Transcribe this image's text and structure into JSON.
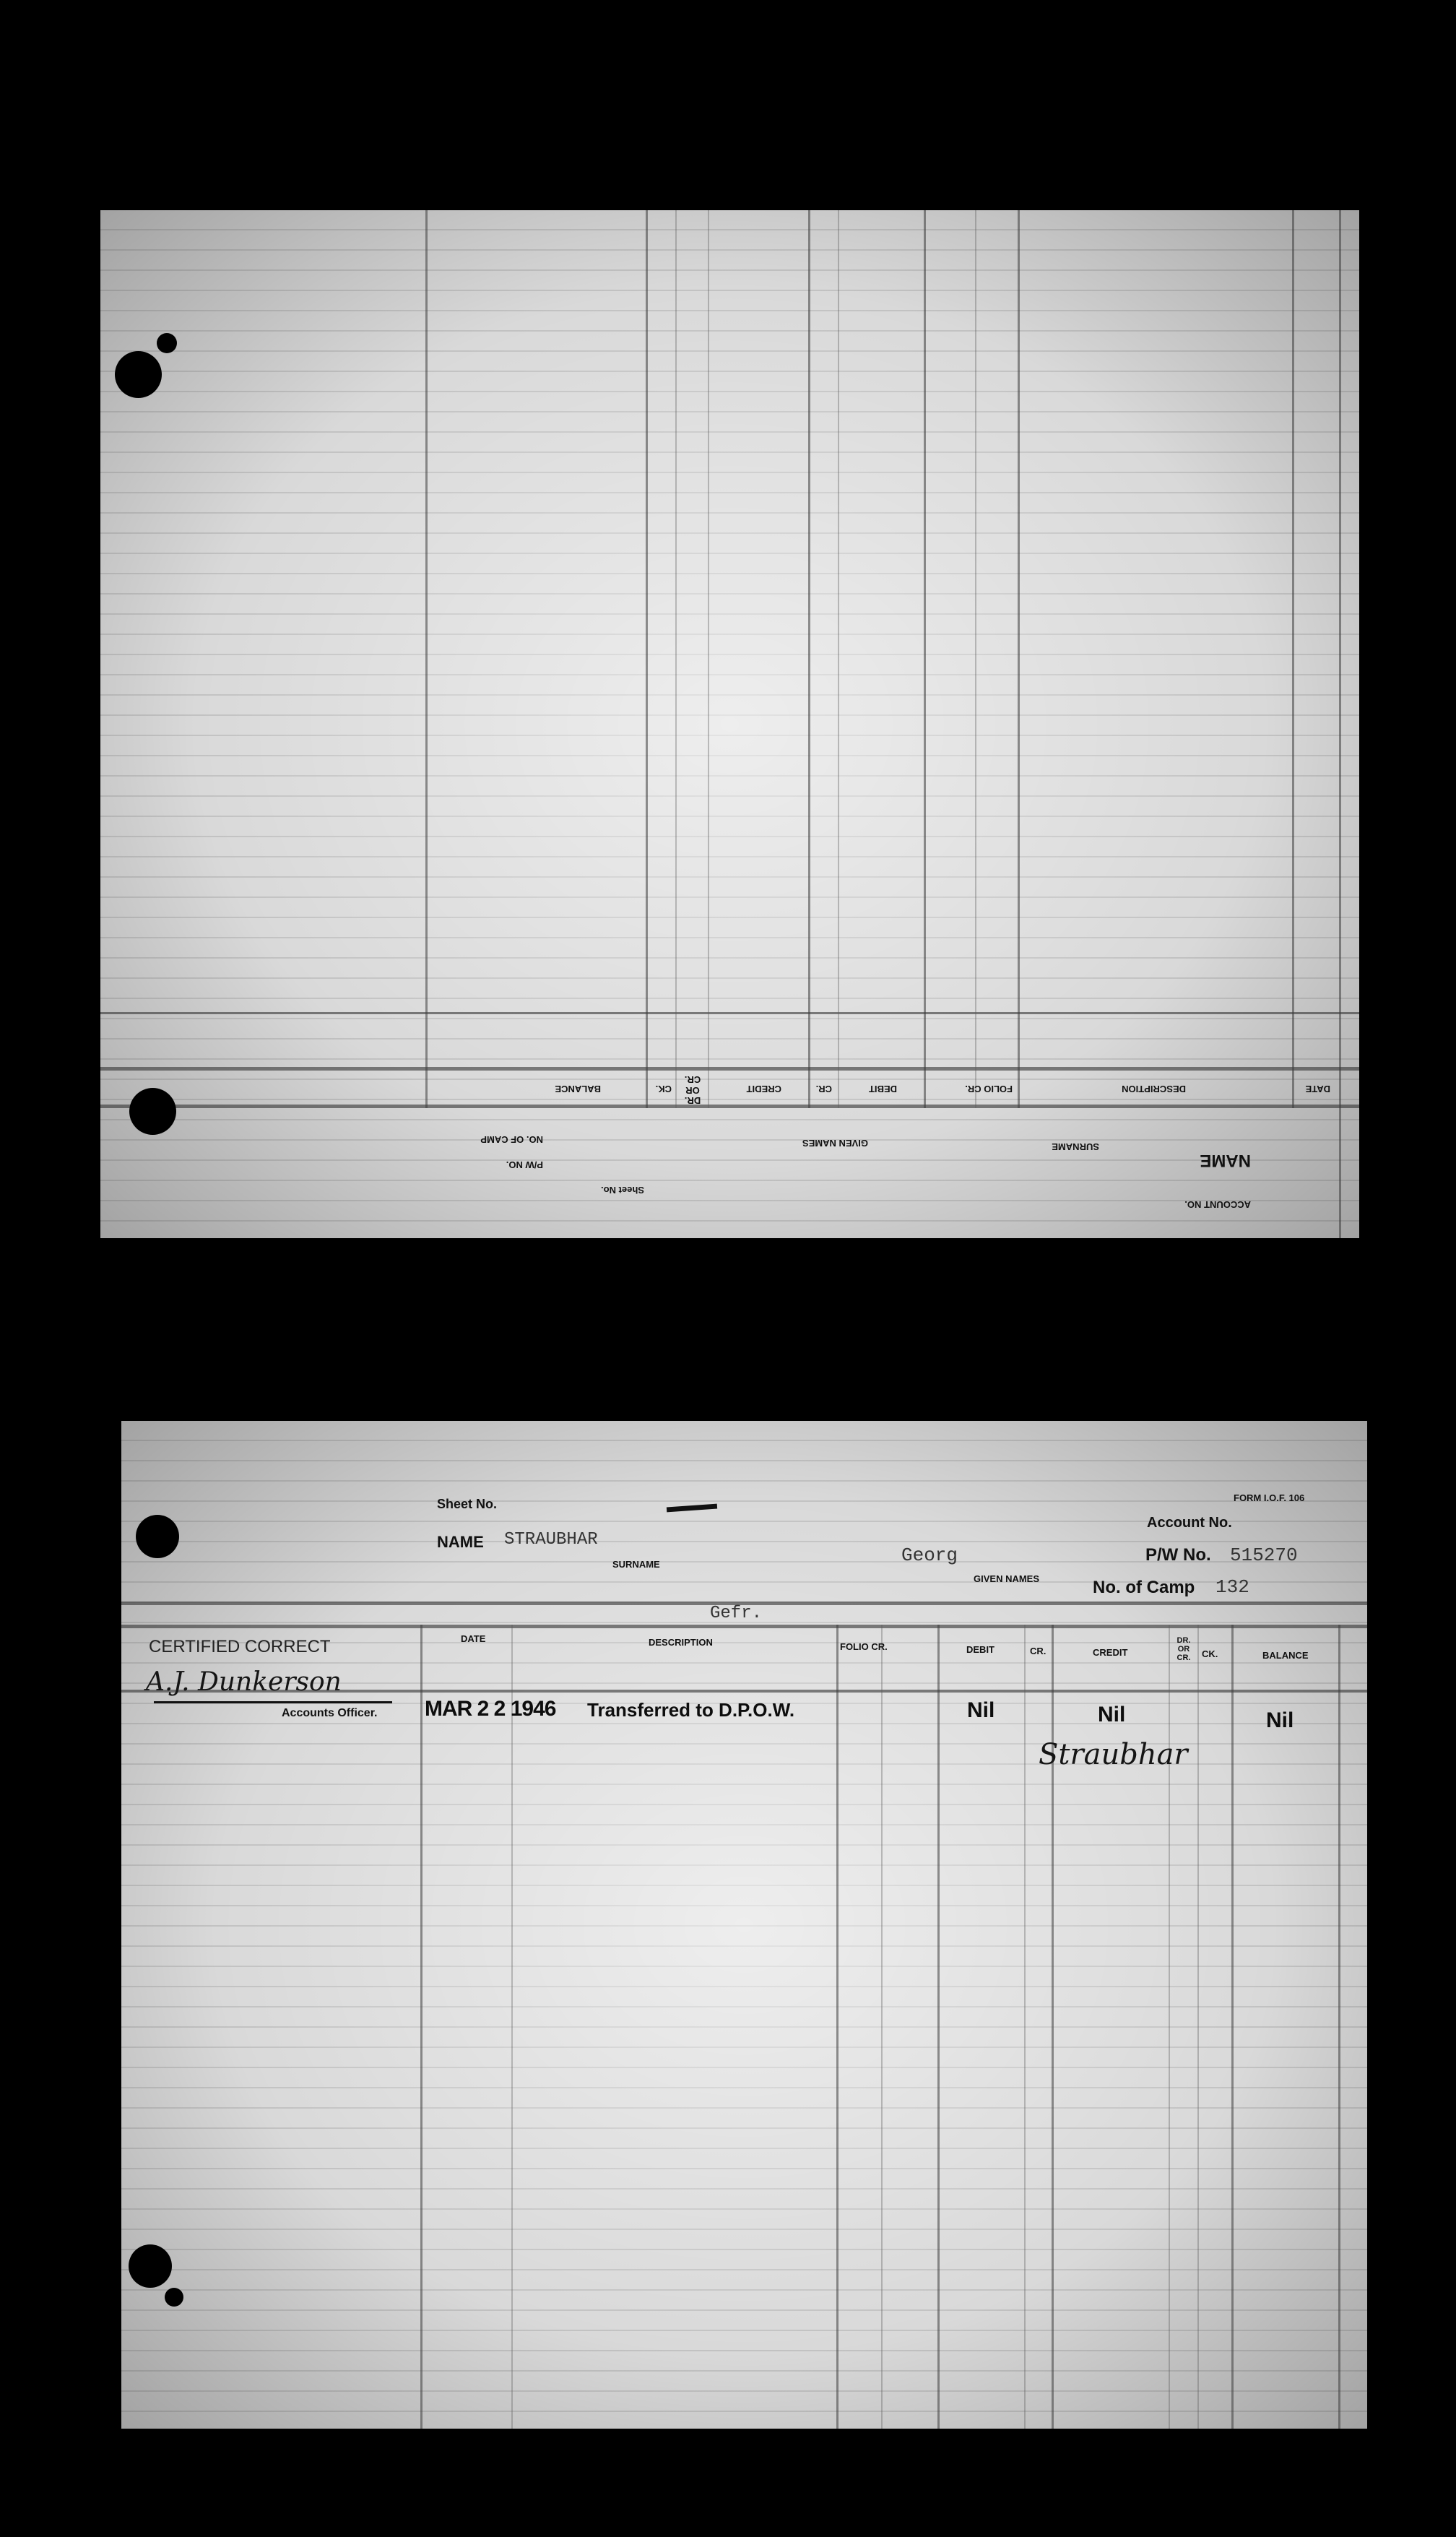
{
  "top_card": {
    "orientation": "upside-down (reverse side of form)",
    "sheet_no_label": "Sheet No.",
    "name_label": "NAME",
    "surname_label": "SURNAME",
    "given_names_label": "GIVEN NAMES",
    "pw_no_label": "P/W NO.",
    "camp_label": "NO. OF CAMP",
    "account_no_label": "ACCOUNT NO.",
    "columns": [
      "DATE",
      "DESCRIPTION",
      "FOLIO CR.",
      "DEBIT",
      "CR.",
      "CREDIT",
      "DR. OR CR.",
      "CK.",
      "BALANCE"
    ]
  },
  "bottom_card": {
    "form_id": "FORM I.O.F. 106",
    "sheet_no_label": "Sheet No.",
    "account_no_label": "Account No.",
    "name_label": "NAME",
    "surname_value": "STRAUBHAR",
    "surname_label": "SURNAME",
    "given_names_value": "Georg",
    "given_names_label": "GIVEN NAMES",
    "pw_no_label": "P/W No.",
    "pw_no_value": "515270",
    "camp_label": "No. of Camp",
    "camp_value": "132",
    "rank_value": "Gefr.",
    "certified_label": "CERTIFIED CORRECT",
    "officer_signature": "A.J. Dunkerson",
    "officer_label": "Accounts Officer.",
    "columns": [
      "DATE",
      "DESCRIPTION",
      "FOLIO CR.",
      "DEBIT",
      "CR.",
      "CREDIT",
      "DR. OR CR.",
      "CK.",
      "BALANCE"
    ],
    "rows": [
      {
        "date": "MAR 2 2 1946",
        "description": "Transferred to D.P.O.W.",
        "debit": "Nil",
        "credit": "Nil",
        "balance": "Nil",
        "signature": "Straubhar"
      }
    ]
  }
}
